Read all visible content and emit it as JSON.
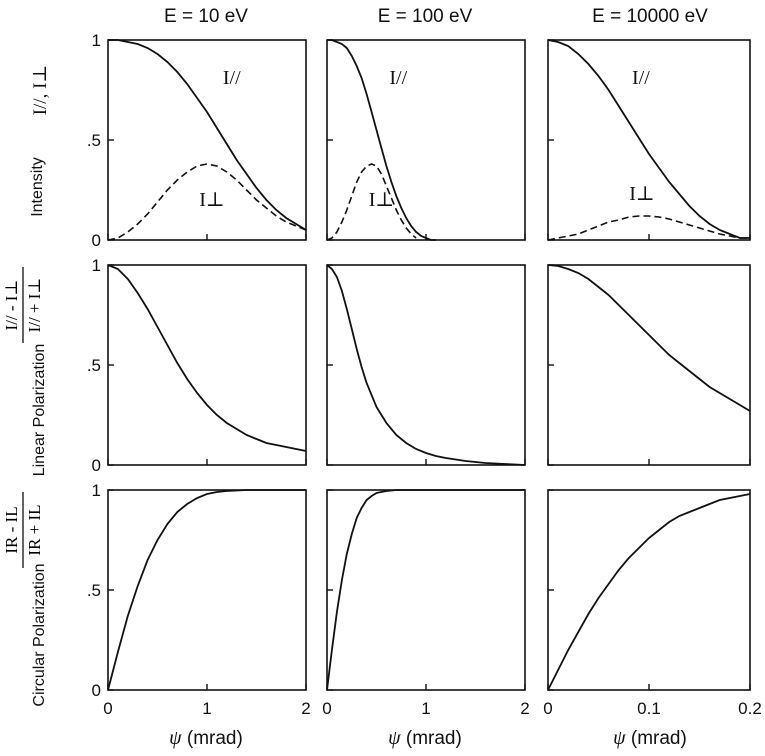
{
  "row_labels": [
    {
      "prefix": "Intensity",
      "formula": "I//, I⊥"
    },
    {
      "prefix": "Linear Polarization",
      "numerator": "I// - I⊥",
      "denominator": "I// + I⊥"
    },
    {
      "prefix": "Circular Polarization",
      "numerator": "IR - IL",
      "denominator": "IR + IL"
    }
  ],
  "xlabel_symbol": "ψ",
  "xlabel_unit": "(mrad)",
  "chart_data": [
    {
      "type": "line",
      "title": "E = 10 eV",
      "row": 1,
      "col": 1,
      "xlim": [
        0,
        2
      ],
      "ylim": [
        0,
        1
      ],
      "xticks": [
        "0",
        "1",
        "2"
      ],
      "yticks": [
        "0",
        ".5",
        "1"
      ],
      "series": [
        {
          "name": "I//",
          "style": "solid",
          "x": [
            0,
            0.1,
            0.2,
            0.3,
            0.4,
            0.5,
            0.6,
            0.7,
            0.8,
            0.9,
            1.0,
            1.1,
            1.2,
            1.3,
            1.4,
            1.5,
            1.6,
            1.7,
            1.8,
            1.9,
            2.0
          ],
          "y": [
            1.0,
            1.0,
            0.99,
            0.98,
            0.96,
            0.93,
            0.89,
            0.84,
            0.78,
            0.71,
            0.64,
            0.56,
            0.48,
            0.4,
            0.33,
            0.26,
            0.2,
            0.15,
            0.11,
            0.08,
            0.05
          ]
        },
        {
          "name": "I⊥",
          "style": "dashed",
          "x": [
            0,
            0.1,
            0.2,
            0.3,
            0.4,
            0.5,
            0.6,
            0.7,
            0.8,
            0.9,
            1.0,
            1.1,
            1.2,
            1.3,
            1.4,
            1.5,
            1.6,
            1.7,
            1.8,
            1.9,
            2.0
          ],
          "y": [
            0.0,
            0.01,
            0.04,
            0.08,
            0.13,
            0.19,
            0.25,
            0.3,
            0.34,
            0.37,
            0.38,
            0.37,
            0.34,
            0.3,
            0.25,
            0.2,
            0.16,
            0.12,
            0.09,
            0.07,
            0.05
          ]
        }
      ],
      "annotations": [
        {
          "text": "I//",
          "x": 1.25,
          "y": 0.78
        },
        {
          "text": "I⊥",
          "x": 1.05,
          "y": 0.17
        }
      ]
    },
    {
      "type": "line",
      "title": "E = 100 eV",
      "row": 1,
      "col": 2,
      "xlim": [
        0,
        2
      ],
      "ylim": [
        0,
        1
      ],
      "xticks": [
        "0",
        "1",
        "2"
      ],
      "yticks": [
        "0",
        ".5",
        "1"
      ],
      "series": [
        {
          "name": "I//",
          "style": "solid",
          "x": [
            0,
            0.05,
            0.1,
            0.15,
            0.2,
            0.25,
            0.3,
            0.35,
            0.4,
            0.45,
            0.5,
            0.55,
            0.6,
            0.65,
            0.7,
            0.75,
            0.8,
            0.85,
            0.9,
            0.95,
            1.0,
            1.05,
            1.1
          ],
          "y": [
            1.0,
            1.0,
            0.99,
            0.98,
            0.96,
            0.92,
            0.87,
            0.81,
            0.73,
            0.64,
            0.55,
            0.46,
            0.37,
            0.29,
            0.22,
            0.16,
            0.11,
            0.07,
            0.04,
            0.02,
            0.01,
            0.0,
            0.0
          ]
        },
        {
          "name": "I⊥",
          "style": "dashed",
          "x": [
            0,
            0.05,
            0.1,
            0.15,
            0.2,
            0.25,
            0.3,
            0.35,
            0.4,
            0.45,
            0.5,
            0.55,
            0.6,
            0.65,
            0.7,
            0.75,
            0.8,
            0.85,
            0.9
          ],
          "y": [
            0.0,
            0.01,
            0.04,
            0.09,
            0.15,
            0.22,
            0.29,
            0.34,
            0.37,
            0.38,
            0.37,
            0.33,
            0.27,
            0.21,
            0.15,
            0.1,
            0.06,
            0.03,
            0.01
          ]
        }
      ],
      "annotations": [
        {
          "text": "I//",
          "x": 0.72,
          "y": 0.78
        },
        {
          "text": "I⊥",
          "x": 0.55,
          "y": 0.17
        }
      ]
    },
    {
      "type": "line",
      "title": "E = 10000 eV",
      "row": 1,
      "col": 3,
      "xlim": [
        0,
        0.2
      ],
      "ylim": [
        0,
        1
      ],
      "xticks": [
        "0",
        "0.1",
        "0.2"
      ],
      "yticks": [
        "0",
        ".5",
        "1"
      ],
      "series": [
        {
          "name": "I//",
          "style": "solid",
          "x": [
            0,
            0.01,
            0.02,
            0.03,
            0.04,
            0.05,
            0.06,
            0.07,
            0.08,
            0.09,
            0.1,
            0.11,
            0.12,
            0.13,
            0.14,
            0.15,
            0.16,
            0.17,
            0.18,
            0.19,
            0.2
          ],
          "y": [
            1.0,
            0.99,
            0.97,
            0.93,
            0.88,
            0.82,
            0.75,
            0.67,
            0.59,
            0.51,
            0.43,
            0.36,
            0.29,
            0.23,
            0.17,
            0.12,
            0.08,
            0.05,
            0.03,
            0.01,
            0.01
          ]
        },
        {
          "name": "I⊥",
          "style": "dashed",
          "x": [
            0,
            0.01,
            0.02,
            0.03,
            0.04,
            0.05,
            0.06,
            0.07,
            0.08,
            0.09,
            0.1,
            0.11,
            0.12,
            0.13,
            0.14,
            0.15,
            0.16,
            0.17,
            0.18,
            0.19,
            0.2
          ],
          "y": [
            0.0,
            0.01,
            0.02,
            0.03,
            0.05,
            0.07,
            0.09,
            0.1,
            0.115,
            0.12,
            0.12,
            0.115,
            0.105,
            0.09,
            0.075,
            0.06,
            0.045,
            0.03,
            0.02,
            0.01,
            0.01
          ]
        }
      ],
      "annotations": [
        {
          "text": "I//",
          "x": 0.092,
          "y": 0.78
        },
        {
          "text": "I⊥",
          "x": 0.093,
          "y": 0.2
        }
      ]
    },
    {
      "type": "line",
      "title": "",
      "row": 2,
      "col": 1,
      "xlim": [
        0,
        2
      ],
      "ylim": [
        0,
        1
      ],
      "xticks": [
        "0",
        "1",
        "2"
      ],
      "yticks": [
        "0",
        ".5",
        "1"
      ],
      "series": [
        {
          "style": "solid",
          "x": [
            0,
            0.1,
            0.2,
            0.3,
            0.4,
            0.5,
            0.6,
            0.7,
            0.8,
            0.9,
            1.0,
            1.1,
            1.2,
            1.3,
            1.4,
            1.5,
            1.6,
            1.7,
            1.8,
            1.9,
            2.0
          ],
          "y": [
            1.0,
            0.98,
            0.93,
            0.86,
            0.78,
            0.69,
            0.6,
            0.51,
            0.43,
            0.36,
            0.3,
            0.25,
            0.21,
            0.18,
            0.15,
            0.13,
            0.11,
            0.1,
            0.09,
            0.08,
            0.07
          ]
        }
      ]
    },
    {
      "type": "line",
      "title": "",
      "row": 2,
      "col": 2,
      "xlim": [
        0,
        2
      ],
      "ylim": [
        0,
        1
      ],
      "xticks": [
        "0",
        "1",
        "2"
      ],
      "yticks": [
        "0",
        ".5",
        "1"
      ],
      "series": [
        {
          "style": "solid",
          "x": [
            0,
            0.05,
            0.1,
            0.15,
            0.2,
            0.25,
            0.3,
            0.35,
            0.4,
            0.5,
            0.6,
            0.7,
            0.8,
            0.9,
            1.0,
            1.1,
            1.2,
            1.4,
            1.6,
            1.8,
            2.0
          ],
          "y": [
            1.0,
            0.98,
            0.94,
            0.87,
            0.78,
            0.68,
            0.58,
            0.49,
            0.41,
            0.29,
            0.21,
            0.15,
            0.11,
            0.08,
            0.06,
            0.045,
            0.035,
            0.02,
            0.01,
            0.005,
            0.0
          ]
        }
      ]
    },
    {
      "type": "line",
      "title": "",
      "row": 2,
      "col": 3,
      "xlim": [
        0,
        0.2
      ],
      "ylim": [
        0,
        1
      ],
      "xticks": [
        "0",
        "0.1",
        "0.2"
      ],
      "yticks": [
        "0",
        ".5",
        "1"
      ],
      "series": [
        {
          "style": "solid",
          "x": [
            0,
            0.01,
            0.02,
            0.03,
            0.04,
            0.05,
            0.06,
            0.07,
            0.08,
            0.09,
            0.1,
            0.11,
            0.12,
            0.13,
            0.14,
            0.15,
            0.16,
            0.17,
            0.18,
            0.19,
            0.2
          ],
          "y": [
            1.0,
            0.995,
            0.98,
            0.96,
            0.93,
            0.89,
            0.85,
            0.8,
            0.75,
            0.7,
            0.65,
            0.6,
            0.55,
            0.51,
            0.47,
            0.43,
            0.39,
            0.36,
            0.33,
            0.3,
            0.27
          ]
        }
      ]
    },
    {
      "type": "line",
      "title": "",
      "row": 3,
      "col": 1,
      "xlim": [
        0,
        2
      ],
      "ylim": [
        0,
        1
      ],
      "xticks": [
        "0",
        "1",
        "2"
      ],
      "yticks": [
        "0",
        ".5",
        "1"
      ],
      "series": [
        {
          "style": "solid",
          "x": [
            0,
            0.1,
            0.2,
            0.3,
            0.4,
            0.5,
            0.6,
            0.7,
            0.8,
            0.9,
            1.0,
            1.1,
            1.2,
            1.4,
            1.6,
            1.8,
            2.0
          ],
          "y": [
            0.0,
            0.19,
            0.37,
            0.52,
            0.65,
            0.75,
            0.83,
            0.89,
            0.93,
            0.96,
            0.98,
            0.99,
            0.995,
            1.0,
            1.0,
            1.0,
            1.0
          ]
        }
      ]
    },
    {
      "type": "line",
      "title": "",
      "row": 3,
      "col": 2,
      "xlim": [
        0,
        2
      ],
      "ylim": [
        0,
        1
      ],
      "xticks": [
        "0",
        "1",
        "2"
      ],
      "yticks": [
        "0",
        ".5",
        "1"
      ],
      "series": [
        {
          "style": "solid",
          "x": [
            0,
            0.05,
            0.1,
            0.15,
            0.2,
            0.25,
            0.3,
            0.35,
            0.4,
            0.45,
            0.5,
            0.6,
            0.7,
            0.8,
            1.0,
            1.2,
            1.6,
            2.0
          ],
          "y": [
            0.0,
            0.2,
            0.39,
            0.55,
            0.68,
            0.78,
            0.86,
            0.91,
            0.95,
            0.97,
            0.985,
            0.995,
            1.0,
            1.0,
            1.0,
            1.0,
            1.0,
            1.0
          ]
        }
      ]
    },
    {
      "type": "line",
      "title": "",
      "row": 3,
      "col": 3,
      "xlim": [
        0,
        0.2
      ],
      "ylim": [
        0,
        1
      ],
      "xticks": [
        "0",
        "0.1",
        "0.2"
      ],
      "yticks": [
        "0",
        ".5",
        "1"
      ],
      "series": [
        {
          "style": "solid",
          "x": [
            0,
            0.01,
            0.02,
            0.03,
            0.04,
            0.05,
            0.06,
            0.07,
            0.08,
            0.09,
            0.1,
            0.11,
            0.12,
            0.13,
            0.14,
            0.15,
            0.16,
            0.17,
            0.18,
            0.19,
            0.2
          ],
          "y": [
            0.0,
            0.1,
            0.2,
            0.29,
            0.38,
            0.46,
            0.53,
            0.6,
            0.66,
            0.71,
            0.76,
            0.8,
            0.84,
            0.87,
            0.89,
            0.91,
            0.93,
            0.95,
            0.96,
            0.97,
            0.98
          ]
        }
      ]
    }
  ]
}
